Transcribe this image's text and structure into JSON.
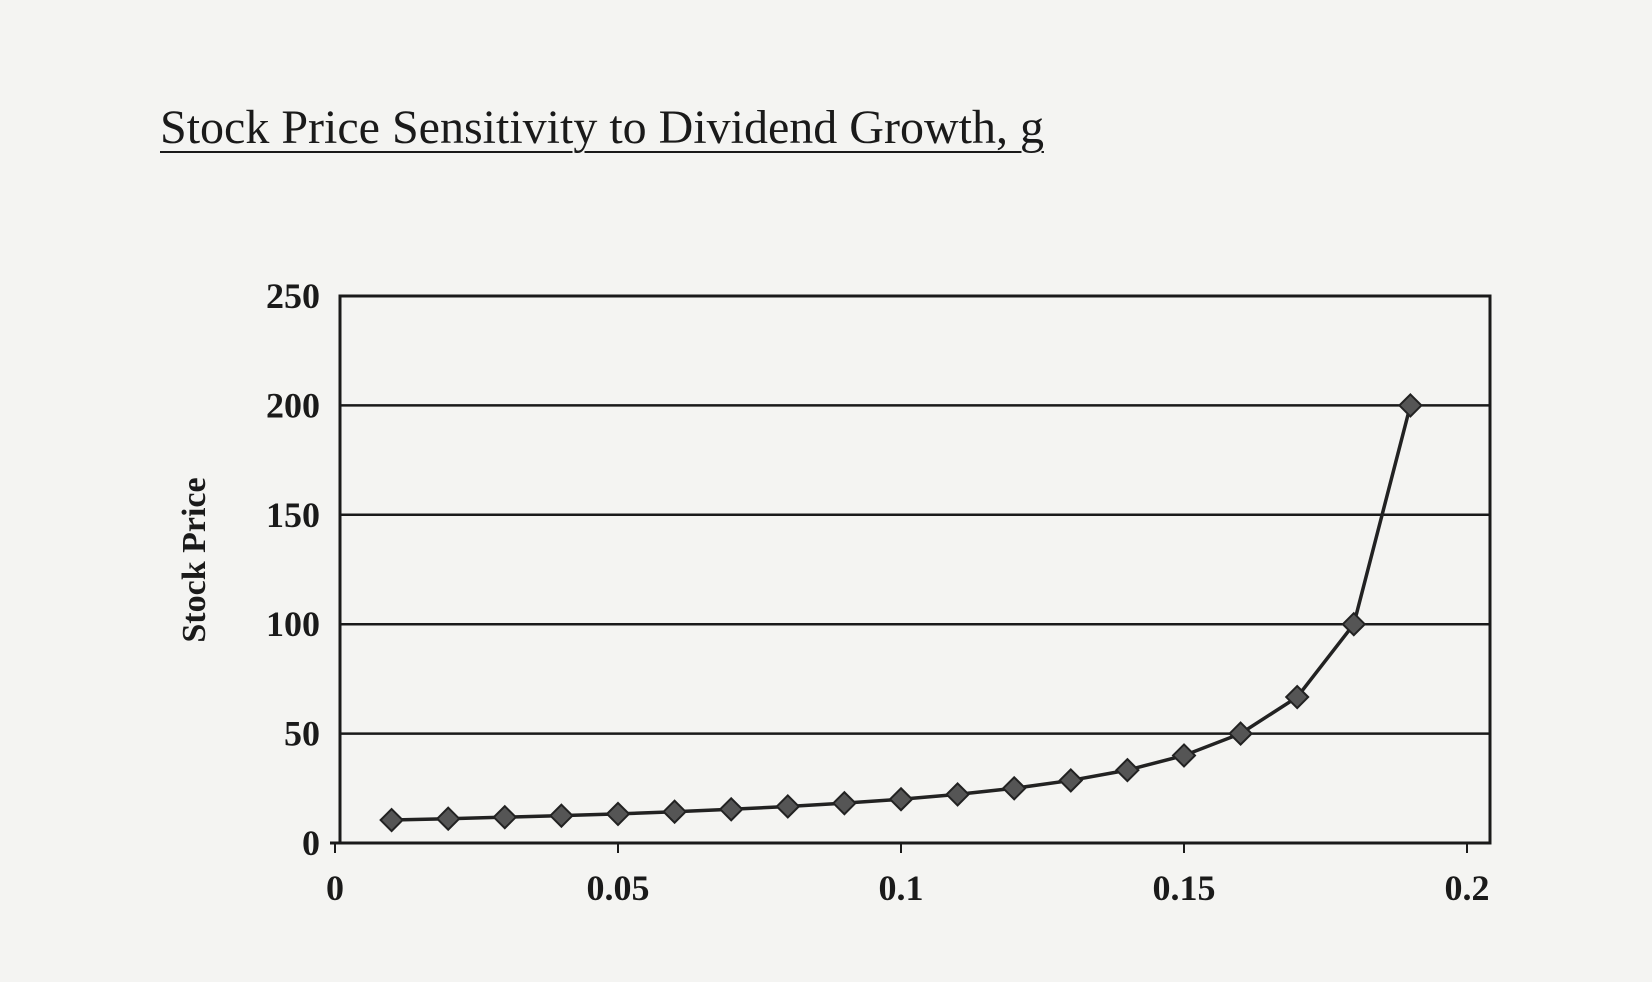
{
  "chart_data": {
    "type": "line",
    "title": "Stock Price Sensitivity to Dividend Growth, g",
    "xlabel": "",
    "ylabel": "Stock Price",
    "xlim": [
      0,
      0.2
    ],
    "ylim": [
      0,
      250
    ],
    "xticks": [
      "0",
      "0.05",
      "0.1",
      "0.15",
      "0.2"
    ],
    "yticks": [
      "0",
      "50",
      "100",
      "150",
      "200",
      "250"
    ],
    "grid": "horizontal",
    "marker": "diamond",
    "colors": {
      "line": "#222222",
      "marker": "#555555"
    },
    "x": [
      0.01,
      0.02,
      0.03,
      0.04,
      0.05,
      0.06,
      0.07,
      0.08,
      0.09,
      0.1,
      0.11,
      0.12,
      0.13,
      0.14,
      0.15,
      0.16,
      0.17,
      0.18,
      0.19
    ],
    "values": [
      10.5,
      11.1,
      11.8,
      12.5,
      13.3,
      14.3,
      15.4,
      16.7,
      18.2,
      20,
      22.2,
      25,
      28.6,
      33.3,
      40,
      50,
      66.7,
      100,
      200
    ]
  }
}
